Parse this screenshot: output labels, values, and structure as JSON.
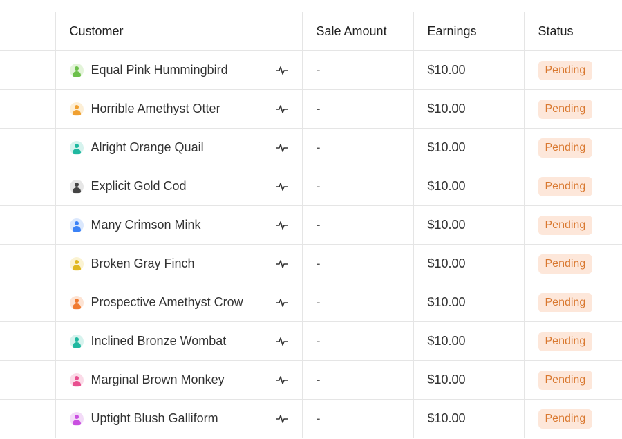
{
  "columns": {
    "customer": "Customer",
    "sale_amount": "Sale Amount",
    "earnings": "Earnings",
    "status": "Status"
  },
  "rows": [
    {
      "customer": "Equal Pink Hummingbird",
      "sale_amount": "-",
      "earnings": "$10.00",
      "status": "Pending",
      "avatar_color": "#6cc04a",
      "avatar_bg": "#e3f4d9"
    },
    {
      "customer": "Horrible Amethyst Otter",
      "sale_amount": "-",
      "earnings": "$10.00",
      "status": "Pending",
      "avatar_color": "#f0a030",
      "avatar_bg": "#fdefd6"
    },
    {
      "customer": "Alright Orange Quail",
      "sale_amount": "-",
      "earnings": "$10.00",
      "status": "Pending",
      "avatar_color": "#1fb8a0",
      "avatar_bg": "#d6f3ee"
    },
    {
      "customer": "Explicit Gold Cod",
      "sale_amount": "-",
      "earnings": "$10.00",
      "status": "Pending",
      "avatar_color": "#444444",
      "avatar_bg": "#e6e6e6"
    },
    {
      "customer": "Many Crimson Mink",
      "sale_amount": "-",
      "earnings": "$10.00",
      "status": "Pending",
      "avatar_color": "#3b82f6",
      "avatar_bg": "#dbe8fd"
    },
    {
      "customer": "Broken Gray Finch",
      "sale_amount": "-",
      "earnings": "$10.00",
      "status": "Pending",
      "avatar_color": "#e0b820",
      "avatar_bg": "#fbf3d2"
    },
    {
      "customer": "Prospective Amethyst Crow",
      "sale_amount": "-",
      "earnings": "$10.00",
      "status": "Pending",
      "avatar_color": "#f07a30",
      "avatar_bg": "#fde3d3"
    },
    {
      "customer": "Inclined Bronze Wombat",
      "sale_amount": "-",
      "earnings": "$10.00",
      "status": "Pending",
      "avatar_color": "#1fb8a0",
      "avatar_bg": "#d6f3ee"
    },
    {
      "customer": "Marginal Brown Monkey",
      "sale_amount": "-",
      "earnings": "$10.00",
      "status": "Pending",
      "avatar_color": "#e84f8f",
      "avatar_bg": "#fbdbe8"
    },
    {
      "customer": "Uptight Blush Galliform",
      "sale_amount": "-",
      "earnings": "$10.00",
      "status": "Pending",
      "avatar_color": "#c94fe0",
      "avatar_bg": "#f3dbf8"
    }
  ],
  "icons": {
    "avatar": "user-avatar-icon",
    "activity": "activity-pulse-icon"
  }
}
